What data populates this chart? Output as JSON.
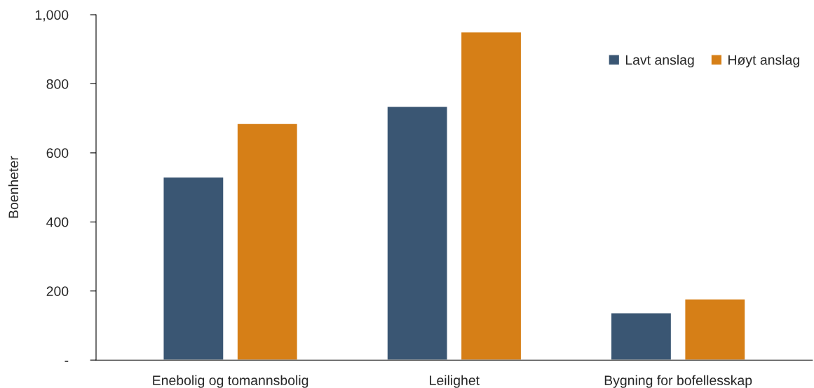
{
  "chart_data": {
    "type": "bar",
    "ylabel": "Boenheter",
    "categories": [
      "Enebolig og tomannsbolig",
      "Leilighet",
      "Bygning for bofellesskap"
    ],
    "series": [
      {
        "name": "Lavt anslag",
        "color": "#3a5673",
        "values": [
          530,
          735,
          137
        ]
      },
      {
        "name": "Høyt anslag",
        "color": "#d67f17",
        "values": [
          685,
          950,
          177
        ]
      }
    ],
    "ylim": [
      0,
      1000
    ],
    "yticks": [
      {
        "value": 0,
        "label": "-"
      },
      200,
      400,
      600,
      800,
      {
        "value": 1000,
        "label": "1,000"
      }
    ],
    "grid": false,
    "legend": "top right"
  }
}
